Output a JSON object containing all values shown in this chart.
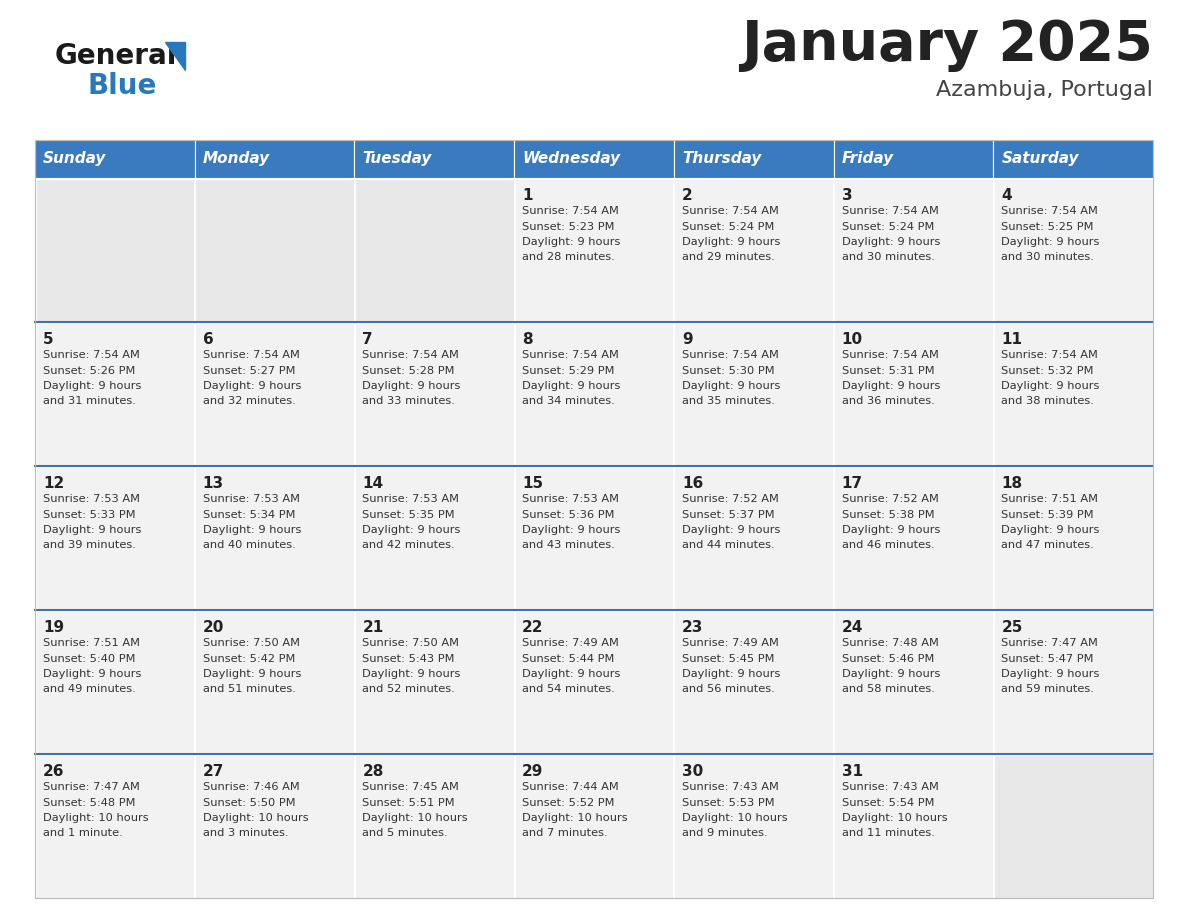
{
  "title": "January 2025",
  "subtitle": "Azambuja, Portugal",
  "header_bg": "#3a7abf",
  "header_text_color": "#ffffff",
  "days_of_week": [
    "Sunday",
    "Monday",
    "Tuesday",
    "Wednesday",
    "Thursday",
    "Friday",
    "Saturday"
  ],
  "calendar": [
    [
      {
        "day": "",
        "info": ""
      },
      {
        "day": "",
        "info": ""
      },
      {
        "day": "",
        "info": ""
      },
      {
        "day": "1",
        "info": "Sunrise: 7:54 AM\nSunset: 5:23 PM\nDaylight: 9 hours\nand 28 minutes."
      },
      {
        "day": "2",
        "info": "Sunrise: 7:54 AM\nSunset: 5:24 PM\nDaylight: 9 hours\nand 29 minutes."
      },
      {
        "day": "3",
        "info": "Sunrise: 7:54 AM\nSunset: 5:24 PM\nDaylight: 9 hours\nand 30 minutes."
      },
      {
        "day": "4",
        "info": "Sunrise: 7:54 AM\nSunset: 5:25 PM\nDaylight: 9 hours\nand 30 minutes."
      }
    ],
    [
      {
        "day": "5",
        "info": "Sunrise: 7:54 AM\nSunset: 5:26 PM\nDaylight: 9 hours\nand 31 minutes."
      },
      {
        "day": "6",
        "info": "Sunrise: 7:54 AM\nSunset: 5:27 PM\nDaylight: 9 hours\nand 32 minutes."
      },
      {
        "day": "7",
        "info": "Sunrise: 7:54 AM\nSunset: 5:28 PM\nDaylight: 9 hours\nand 33 minutes."
      },
      {
        "day": "8",
        "info": "Sunrise: 7:54 AM\nSunset: 5:29 PM\nDaylight: 9 hours\nand 34 minutes."
      },
      {
        "day": "9",
        "info": "Sunrise: 7:54 AM\nSunset: 5:30 PM\nDaylight: 9 hours\nand 35 minutes."
      },
      {
        "day": "10",
        "info": "Sunrise: 7:54 AM\nSunset: 5:31 PM\nDaylight: 9 hours\nand 36 minutes."
      },
      {
        "day": "11",
        "info": "Sunrise: 7:54 AM\nSunset: 5:32 PM\nDaylight: 9 hours\nand 38 minutes."
      }
    ],
    [
      {
        "day": "12",
        "info": "Sunrise: 7:53 AM\nSunset: 5:33 PM\nDaylight: 9 hours\nand 39 minutes."
      },
      {
        "day": "13",
        "info": "Sunrise: 7:53 AM\nSunset: 5:34 PM\nDaylight: 9 hours\nand 40 minutes."
      },
      {
        "day": "14",
        "info": "Sunrise: 7:53 AM\nSunset: 5:35 PM\nDaylight: 9 hours\nand 42 minutes."
      },
      {
        "day": "15",
        "info": "Sunrise: 7:53 AM\nSunset: 5:36 PM\nDaylight: 9 hours\nand 43 minutes."
      },
      {
        "day": "16",
        "info": "Sunrise: 7:52 AM\nSunset: 5:37 PM\nDaylight: 9 hours\nand 44 minutes."
      },
      {
        "day": "17",
        "info": "Sunrise: 7:52 AM\nSunset: 5:38 PM\nDaylight: 9 hours\nand 46 minutes."
      },
      {
        "day": "18",
        "info": "Sunrise: 7:51 AM\nSunset: 5:39 PM\nDaylight: 9 hours\nand 47 minutes."
      }
    ],
    [
      {
        "day": "19",
        "info": "Sunrise: 7:51 AM\nSunset: 5:40 PM\nDaylight: 9 hours\nand 49 minutes."
      },
      {
        "day": "20",
        "info": "Sunrise: 7:50 AM\nSunset: 5:42 PM\nDaylight: 9 hours\nand 51 minutes."
      },
      {
        "day": "21",
        "info": "Sunrise: 7:50 AM\nSunset: 5:43 PM\nDaylight: 9 hours\nand 52 minutes."
      },
      {
        "day": "22",
        "info": "Sunrise: 7:49 AM\nSunset: 5:44 PM\nDaylight: 9 hours\nand 54 minutes."
      },
      {
        "day": "23",
        "info": "Sunrise: 7:49 AM\nSunset: 5:45 PM\nDaylight: 9 hours\nand 56 minutes."
      },
      {
        "day": "24",
        "info": "Sunrise: 7:48 AM\nSunset: 5:46 PM\nDaylight: 9 hours\nand 58 minutes."
      },
      {
        "day": "25",
        "info": "Sunrise: 7:47 AM\nSunset: 5:47 PM\nDaylight: 9 hours\nand 59 minutes."
      }
    ],
    [
      {
        "day": "26",
        "info": "Sunrise: 7:47 AM\nSunset: 5:48 PM\nDaylight: 10 hours\nand 1 minute."
      },
      {
        "day": "27",
        "info": "Sunrise: 7:46 AM\nSunset: 5:50 PM\nDaylight: 10 hours\nand 3 minutes."
      },
      {
        "day": "28",
        "info": "Sunrise: 7:45 AM\nSunset: 5:51 PM\nDaylight: 10 hours\nand 5 minutes."
      },
      {
        "day": "29",
        "info": "Sunrise: 7:44 AM\nSunset: 5:52 PM\nDaylight: 10 hours\nand 7 minutes."
      },
      {
        "day": "30",
        "info": "Sunrise: 7:43 AM\nSunset: 5:53 PM\nDaylight: 10 hours\nand 9 minutes."
      },
      {
        "day": "31",
        "info": "Sunrise: 7:43 AM\nSunset: 5:54 PM\nDaylight: 10 hours\nand 11 minutes."
      },
      {
        "day": "",
        "info": ""
      }
    ]
  ],
  "cell_bg_color": "#f2f2f2",
  "cell_empty_bg": "#e8e8e8",
  "row_divider_color": "#4472a8",
  "day_num_color": "#222222",
  "info_text_color": "#333333",
  "logo_general_color": "#1a1a1a",
  "logo_blue_color": "#2878be",
  "fig_width": 11.88,
  "fig_height": 9.18,
  "dpi": 100
}
